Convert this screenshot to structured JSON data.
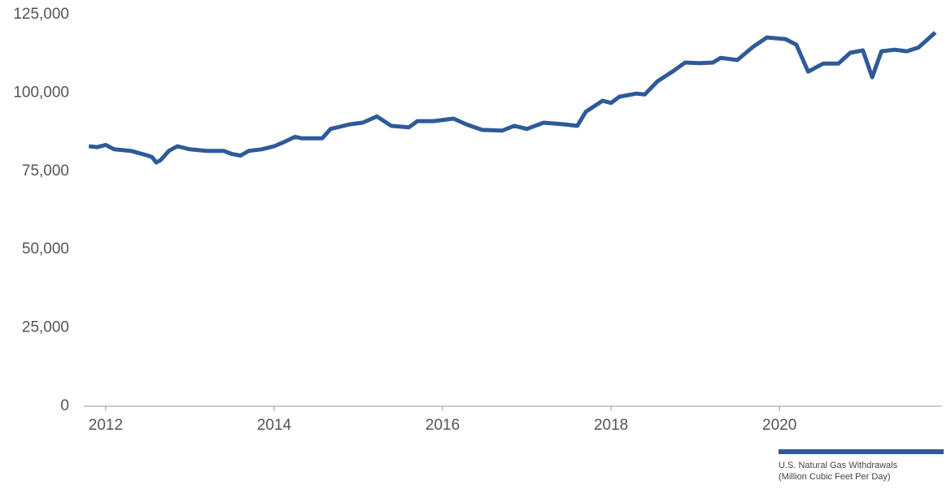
{
  "chart_data": {
    "type": "line",
    "xlim": [
      2011.74,
      2021.93
    ],
    "xticks": [
      2012,
      2014,
      2016,
      2018,
      2020
    ],
    "ylim": [
      0,
      125000
    ],
    "yticks": [
      0,
      {
        "value": 25000,
        "label": "25,000"
      },
      {
        "value": 50000,
        "label": "50,000"
      },
      {
        "value": 75000,
        "label": "75,000"
      },
      {
        "value": 100000,
        "label": "100,000"
      },
      {
        "value": 125000,
        "label": "125,000"
      }
    ],
    "grid": false,
    "legend_position": "bottom-right",
    "series": [
      {
        "name": "U.S. Natural Gas Withdrawals",
        "unit_label": "(Million Cubic Feet Per Day)",
        "color": "#2e5a98",
        "x": [
          2011.8,
          2011.9,
          2012.0,
          2012.1,
          2012.3,
          2012.5,
          2012.55,
          2012.6,
          2012.65,
          2012.75,
          2012.85,
          2013.0,
          2013.2,
          2013.4,
          2013.5,
          2013.6,
          2013.7,
          2013.85,
          2014.0,
          2014.09,
          2014.25,
          2014.33,
          2014.57,
          2014.67,
          2014.9,
          2015.05,
          2015.22,
          2015.39,
          2015.6,
          2015.7,
          2015.89,
          2016.13,
          2016.28,
          2016.47,
          2016.71,
          2016.85,
          2017.0,
          2017.2,
          2017.44,
          2017.6,
          2017.7,
          2017.9,
          2018.0,
          2018.1,
          2018.3,
          2018.4,
          2018.55,
          2018.74,
          2018.88,
          2019.05,
          2019.21,
          2019.3,
          2019.5,
          2019.68,
          2019.85,
          2020.07,
          2020.2,
          2020.34,
          2020.52,
          2020.7,
          2020.84,
          2020.99,
          2021.1,
          2021.21,
          2021.37,
          2021.51,
          2021.65,
          2021.85
        ],
        "values": [
          83000,
          82700,
          83400,
          82000,
          81500,
          80000,
          79500,
          77800,
          78500,
          81500,
          83000,
          82000,
          81500,
          81500,
          80500,
          80000,
          81500,
          82000,
          83000,
          84000,
          86000,
          85500,
          85500,
          88500,
          90000,
          90500,
          92500,
          89500,
          89000,
          91000,
          91000,
          91800,
          90000,
          88200,
          88000,
          89500,
          88500,
          90500,
          90000,
          89500,
          94000,
          97500,
          96800,
          98800,
          99800,
          99500,
          103700,
          107000,
          109700,
          109500,
          109700,
          111200,
          110500,
          114600,
          117700,
          117200,
          115400,
          106800,
          109400,
          109400,
          112800,
          113600,
          105000,
          113300,
          113800,
          113300,
          114500,
          119300
        ]
      }
    ]
  }
}
